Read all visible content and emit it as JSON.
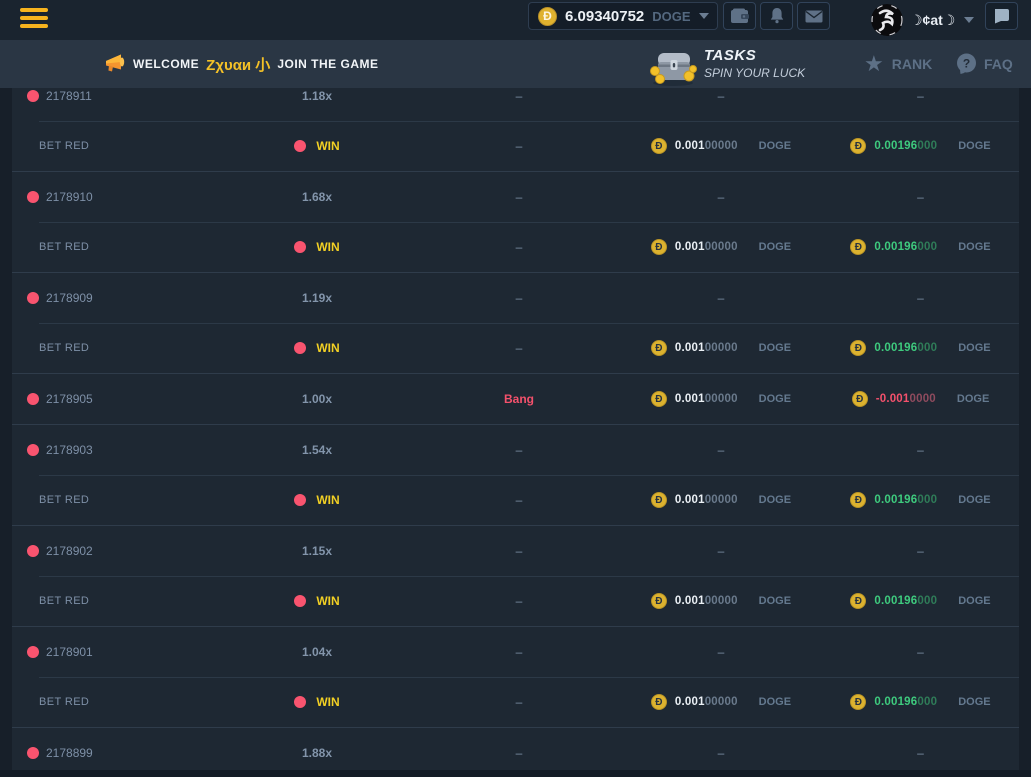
{
  "topbar": {
    "balance": {
      "amount": "6.09340752",
      "currency": "DOGE",
      "coin_symbol": "Đ"
    },
    "user": {
      "name": "☽¢at☽"
    },
    "icons": [
      "hamburger-icon",
      "doge-coin-icon",
      "wallet-icon",
      "bell-icon",
      "mail-icon",
      "avatar",
      "chat-icon"
    ]
  },
  "subbar": {
    "welcome_prefix": "WELCOME",
    "welcome_user": "Ζχυαи 小",
    "welcome_suffix": "JOIN THE GAME",
    "tasks_title": "TASKS",
    "tasks_subtitle": "SPIN YOUR LUCK",
    "rank_label": "RANK",
    "faq_label": "FAQ",
    "star_glyph": "★",
    "icons": [
      "megaphone-icon",
      "treasure-chest-icon",
      "star-icon",
      "faq-icon"
    ]
  },
  "colors": {
    "accent_yellow": "#f4c127",
    "win_yellow": "#f2d024",
    "red_dot": "#f9546f",
    "bang_red": "#f4516c",
    "profit_green": "#3ecb7e",
    "coin_gold": "#dcb22f",
    "row_bg": "#1e2833",
    "subbar_bg": "#2a3644",
    "topbar_bg": "#1a242f"
  },
  "table": {
    "dash": "–",
    "coin_symbol": "Đ",
    "groups": [
      {
        "round": {
          "id": "2178911",
          "multiplier": "1.18x"
        },
        "bet": {
          "label": "BET RED",
          "status": "WIN",
          "amount": {
            "main": "0.001",
            "dim": "00000",
            "currency": "DOGE"
          },
          "profit": {
            "main": "0.00196",
            "dim": "000",
            "currency": "DOGE",
            "win": true
          }
        }
      },
      {
        "round": {
          "id": "2178910",
          "multiplier": "1.68x"
        },
        "bet": {
          "label": "BET RED",
          "status": "WIN",
          "amount": {
            "main": "0.001",
            "dim": "00000",
            "currency": "DOGE"
          },
          "profit": {
            "main": "0.00196",
            "dim": "000",
            "currency": "DOGE",
            "win": true
          }
        }
      },
      {
        "round": {
          "id": "2178909",
          "multiplier": "1.19x"
        },
        "bet": {
          "label": "BET RED",
          "status": "WIN",
          "amount": {
            "main": "0.001",
            "dim": "00000",
            "currency": "DOGE"
          },
          "profit": {
            "main": "0.00196",
            "dim": "000",
            "currency": "DOGE",
            "win": true
          }
        }
      },
      {
        "round": {
          "id": "2178905",
          "multiplier": "1.00x",
          "status": "Bang",
          "amount": {
            "main": "0.001",
            "dim": "00000",
            "currency": "DOGE"
          },
          "profit": {
            "main": "-0.001",
            "dim": "0000",
            "currency": "DOGE",
            "win": false
          }
        }
      },
      {
        "round": {
          "id": "2178903",
          "multiplier": "1.54x"
        },
        "bet": {
          "label": "BET RED",
          "status": "WIN",
          "amount": {
            "main": "0.001",
            "dim": "00000",
            "currency": "DOGE"
          },
          "profit": {
            "main": "0.00196",
            "dim": "000",
            "currency": "DOGE",
            "win": true
          }
        }
      },
      {
        "round": {
          "id": "2178902",
          "multiplier": "1.15x"
        },
        "bet": {
          "label": "BET RED",
          "status": "WIN",
          "amount": {
            "main": "0.001",
            "dim": "00000",
            "currency": "DOGE"
          },
          "profit": {
            "main": "0.00196",
            "dim": "000",
            "currency": "DOGE",
            "win": true
          }
        }
      },
      {
        "round": {
          "id": "2178901",
          "multiplier": "1.04x"
        },
        "bet": {
          "label": "BET RED",
          "status": "WIN",
          "amount": {
            "main": "0.001",
            "dim": "00000",
            "currency": "DOGE"
          },
          "profit": {
            "main": "0.00196",
            "dim": "000",
            "currency": "DOGE",
            "win": true
          }
        }
      },
      {
        "round": {
          "id": "2178899",
          "multiplier": "1.88x"
        }
      }
    ]
  }
}
